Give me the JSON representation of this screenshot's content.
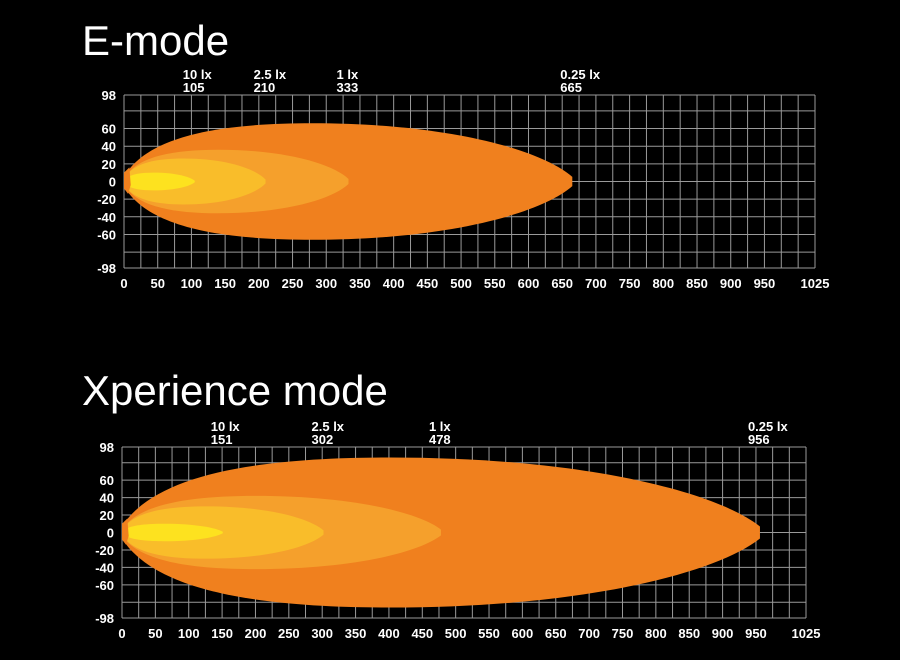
{
  "colors": {
    "background": "#000000",
    "grid": "#9a9a9a",
    "zone_0_25": "#f0801e",
    "zone_1": "#f5a02c",
    "zone_2_5": "#f9bd2a",
    "zone_10": "#fde21f",
    "text": "#ffffff"
  },
  "chart_data": [
    {
      "type": "area",
      "title": "E-mode",
      "x_ticks": [
        0,
        50,
        100,
        150,
        200,
        250,
        300,
        350,
        400,
        450,
        500,
        550,
        600,
        650,
        700,
        750,
        800,
        850,
        900,
        950,
        1025
      ],
      "y_ticks": [
        98,
        60,
        40,
        20,
        0,
        -20,
        -40,
        -60,
        -98
      ],
      "xlim": [
        0,
        1025
      ],
      "ylim": [
        -98,
        98
      ],
      "grid": true,
      "iso_lux": [
        {
          "lux_label": "10 lx",
          "reach": 105,
          "half_width": 10
        },
        {
          "lux_label": "2.5 lx",
          "reach": 210,
          "half_width": 26
        },
        {
          "lux_label": "1 lx",
          "reach": 333,
          "half_width": 36
        },
        {
          "lux_label": "0.25 lx",
          "reach": 665,
          "half_width": 66
        }
      ]
    },
    {
      "type": "area",
      "title": "Xperience mode",
      "x_ticks": [
        0,
        50,
        100,
        150,
        200,
        250,
        300,
        350,
        400,
        450,
        500,
        550,
        600,
        650,
        700,
        750,
        800,
        850,
        900,
        950,
        1025
      ],
      "y_ticks": [
        98,
        60,
        40,
        20,
        0,
        -20,
        -40,
        -60,
        -98
      ],
      "xlim": [
        0,
        1025
      ],
      "ylim": [
        -98,
        98
      ],
      "grid": true,
      "iso_lux": [
        {
          "lux_label": "10 lx",
          "reach": 151,
          "half_width": 10
        },
        {
          "lux_label": "2.5 lx",
          "reach": 302,
          "half_width": 30
        },
        {
          "lux_label": "1 lx",
          "reach": 478,
          "half_width": 42
        },
        {
          "lux_label": "0.25 lx",
          "reach": 956,
          "half_width": 86
        }
      ]
    }
  ]
}
